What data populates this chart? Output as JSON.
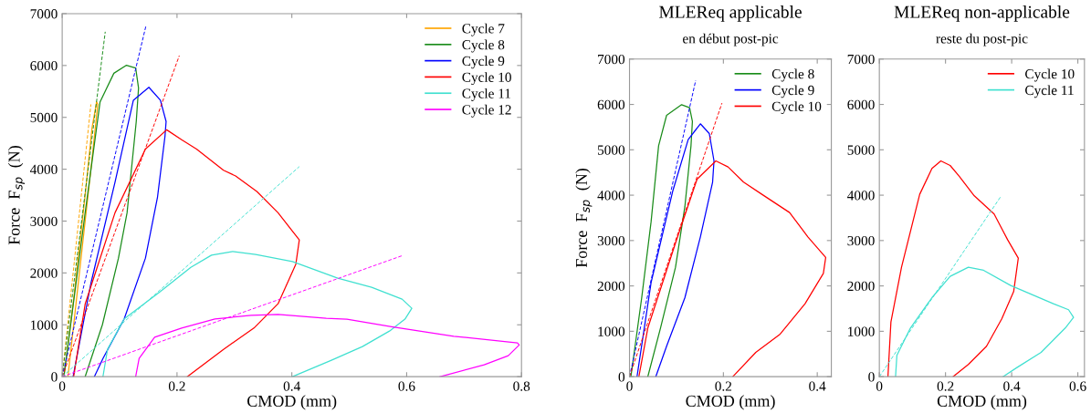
{
  "chart_data": [
    {
      "type": "line",
      "xlabel": "CMOD (mm)",
      "ylabel": "Force  F$_{sp}$  (N)",
      "xlim": [
        0,
        0.8
      ],
      "ylim": [
        0,
        7000
      ],
      "xticks": [
        0,
        0.2,
        0.4,
        0.6,
        0.8
      ],
      "yticks": [
        0,
        1000,
        2000,
        3000,
        4000,
        5000,
        6000,
        7000
      ],
      "legend": "top right",
      "grid": false,
      "series": [
        {
          "name": "Cycle 7",
          "color": "#ffa500",
          "x": [
            0.003,
            0.02,
            0.04,
            0.052,
            0.06,
            0.062,
            0.05,
            0.035,
            0.02,
            0.01
          ],
          "values": [
            0,
            1500,
            3500,
            4800,
            5300,
            5250,
            4000,
            2500,
            1000,
            0
          ]
        },
        {
          "name": "Cycle 8",
          "color": "#1a8c1a",
          "x": [
            0.003,
            0.04,
            0.066,
            0.09,
            0.112,
            0.128,
            0.133,
            0.129,
            0.113,
            0.098,
            0.07,
            0.04
          ],
          "values": [
            0,
            3160,
            5300,
            5850,
            6005,
            5950,
            5565,
            4920,
            3160,
            2285,
            1000,
            0
          ]
        },
        {
          "name": "Cycle 9",
          "color": "#0000ff",
          "x": [
            0.019,
            0.05,
            0.092,
            0.124,
            0.151,
            0.171,
            0.181,
            0.179,
            0.166,
            0.145,
            0.108,
            0.071,
            0.056
          ],
          "values": [
            0,
            1800,
            3750,
            5330,
            5580,
            5330,
            4920,
            4630,
            3460,
            2285,
            1113,
            350,
            0
          ]
        },
        {
          "name": "Cycle 10",
          "color": "#ff0000",
          "x": [
            0.02,
            0.04,
            0.092,
            0.145,
            0.182,
            0.208,
            0.234,
            0.281,
            0.302,
            0.339,
            0.376,
            0.413,
            0.407,
            0.376,
            0.334,
            0.281,
            0.218
          ],
          "values": [
            0,
            1400,
            3160,
            4390,
            4760,
            4570,
            4390,
            3980,
            3870,
            3570,
            3160,
            2636,
            2170,
            1406,
            937,
            527,
            0
          ]
        },
        {
          "name": "Cycle 11",
          "color": "#40e0d0",
          "x": [
            0.071,
            0.079,
            0.108,
            0.171,
            0.224,
            0.26,
            0.297,
            0.337,
            0.401,
            0.48,
            0.539,
            0.592,
            0.609,
            0.597,
            0.57,
            0.523,
            0.469,
            0.401
          ],
          "values": [
            0,
            527,
            1113,
            1640,
            2109,
            2343,
            2414,
            2357,
            2221,
            1899,
            1723,
            1494,
            1318,
            1108,
            879,
            580,
            317,
            0
          ]
        },
        {
          "name": "Cycle 12",
          "color": "#ff00ff",
          "x": [
            0.128,
            0.134,
            0.161,
            0.208,
            0.266,
            0.329,
            0.376,
            0.46,
            0.496,
            0.576,
            0.682,
            0.793,
            0.796,
            0.777,
            0.735,
            0.658
          ],
          "values": [
            0,
            352,
            762,
            937,
            1113,
            1183,
            1200,
            1125,
            1108,
            960,
            780,
            651,
            612,
            404,
            229,
            0
          ]
        },
        {
          "color": "#ffa500",
          "line_style": "dashed",
          "x": [
            0,
            0.05
          ],
          "values": [
            0,
            5250
          ]
        },
        {
          "color": "#1a8c1a",
          "line_style": "dashed",
          "x": [
            0,
            0.075
          ],
          "values": [
            0,
            6650
          ]
        },
        {
          "color": "#0000ff",
          "line_style": "dashed",
          "x": [
            0,
            0.146
          ],
          "values": [
            0,
            6770
          ]
        },
        {
          "color": "#ff0000",
          "line_style": "dashed",
          "x": [
            0,
            0.204
          ],
          "values": [
            0,
            6190
          ]
        },
        {
          "color": "#40e0d0",
          "line_style": "dashed",
          "x": [
            0,
            0.413
          ],
          "values": [
            0,
            4050
          ]
        },
        {
          "color": "#ff00ff",
          "line_style": "dashed",
          "x": [
            0,
            0.594
          ],
          "values": [
            0,
            2340
          ]
        }
      ]
    },
    {
      "type": "line",
      "title": "MLEReq applicable",
      "subtitle": "en début post-pic",
      "xlabel": "CMOD (mm)",
      "ylabel": "Force  F$_{sp}$  (N)",
      "xlim": [
        0,
        0.43
      ],
      "ylim": [
        0,
        7000
      ],
      "xticks": [
        0,
        0.2,
        0.4
      ],
      "yticks": [
        0,
        1000,
        2000,
        3000,
        4000,
        5000,
        6000,
        7000
      ],
      "legend": "top right",
      "grid": false,
      "series": [
        {
          "name": "Cycle 8",
          "color": "#1a8c1a",
          "x": [
            0.003,
            0.026,
            0.046,
            0.062,
            0.079,
            0.111,
            0.128,
            0.134,
            0.131,
            0.118,
            0.098,
            0.066,
            0.039
          ],
          "values": [
            0,
            1741,
            3416,
            5090,
            5760,
            5995,
            5928,
            5626,
            5090,
            3751,
            2411,
            1072,
            0
          ]
        },
        {
          "name": "Cycle 9",
          "color": "#0000ff",
          "x": [
            0.016,
            0.046,
            0.092,
            0.125,
            0.151,
            0.17,
            0.18,
            0.177,
            0.151,
            0.118,
            0.079,
            0.056
          ],
          "values": [
            0,
            2076,
            4086,
            5224,
            5573,
            5358,
            4755,
            4287,
            3081,
            1741,
            670,
            0
          ]
        },
        {
          "name": "Cycle 10",
          "color": "#ff0000",
          "x": [
            0.02,
            0.039,
            0.098,
            0.144,
            0.184,
            0.21,
            0.243,
            0.282,
            0.341,
            0.38,
            0.418,
            0.413,
            0.374,
            0.321,
            0.269,
            0.22
          ],
          "values": [
            0,
            1072,
            2947,
            4354,
            4755,
            4622,
            4287,
            4019,
            3617,
            3081,
            2626,
            2277,
            1608,
            938,
            536,
            0
          ]
        },
        {
          "color": "#0000ff",
          "line_style": "dashed",
          "x": [
            0,
            0.141
          ],
          "values": [
            0,
            6530
          ]
        },
        {
          "color": "#ff0000",
          "line_style": "dashed",
          "x": [
            0,
            0.197
          ],
          "values": [
            0,
            6030
          ]
        }
      ]
    },
    {
      "type": "line",
      "title": "MLEReq non-applicable",
      "subtitle": "reste du post-pic",
      "xlabel": "CMOD (mm)",
      "xlim": [
        0,
        0.62
      ],
      "ylim": [
        0,
        7000
      ],
      "xticks": [
        0,
        0.2,
        0.4,
        0.6
      ],
      "yticks": [
        0,
        1000,
        2000,
        3000,
        4000,
        5000,
        6000,
        7000
      ],
      "legend": "top right",
      "grid": false,
      "series": [
        {
          "name": "Cycle 10",
          "color": "#ff0000",
          "x": [
            0.026,
            0.035,
            0.067,
            0.122,
            0.159,
            0.186,
            0.214,
            0.241,
            0.287,
            0.347,
            0.388,
            0.42,
            0.406,
            0.37,
            0.324,
            0.269,
            0.223
          ],
          "values": [
            0,
            1206,
            2411,
            4019,
            4588,
            4755,
            4655,
            4421,
            3985,
            3583,
            3014,
            2612,
            1875,
            1273,
            670,
            268,
            0
          ]
        },
        {
          "name": "Cycle 11",
          "color": "#40e0d0",
          "x": [
            0.049,
            0.053,
            0.094,
            0.159,
            0.214,
            0.269,
            0.315,
            0.397,
            0.526,
            0.572,
            0.587,
            0.562,
            0.489,
            0.416,
            0.374
          ],
          "values": [
            0,
            469,
            1072,
            1741,
            2210,
            2411,
            2344,
            2009,
            1608,
            1474,
            1306,
            1072,
            536,
            201,
            0
          ]
        },
        {
          "color": "#40e0d0",
          "line_style": "dashed",
          "x": [
            0,
            0.367
          ],
          "values": [
            0,
            3970
          ]
        }
      ]
    }
  ]
}
